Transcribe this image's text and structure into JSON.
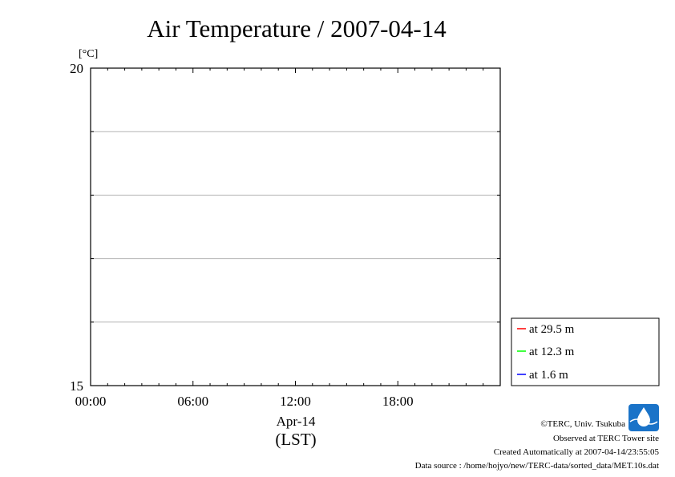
{
  "chart_data": {
    "type": "line",
    "title": "Air Temperature / 2007-04-14",
    "ylabel": "[°C]",
    "ylim": [
      15,
      20
    ],
    "yticks": [
      15,
      20
    ],
    "ygrid": [
      16,
      17,
      18,
      19
    ],
    "xlim_hours": [
      0,
      24
    ],
    "xticks": [
      {
        "hour": 0,
        "label": "00:00"
      },
      {
        "hour": 6,
        "label": "06:00"
      },
      {
        "hour": 12,
        "label": "12:00"
      },
      {
        "hour": 18,
        "label": "18:00"
      }
    ],
    "xlabel_date": "Apr-14",
    "xlabel": "(LST)",
    "grid": "horizontal",
    "legend_position": "right-bottom",
    "series": [
      {
        "name": "at 29.5 m",
        "color": "#ff0000",
        "values": []
      },
      {
        "name": "at 12.3 m",
        "color": "#00ff00",
        "values": []
      },
      {
        "name": "at 1.6 m",
        "color": "#0000ff",
        "values": []
      }
    ]
  },
  "footer": {
    "copyright": "©TERC, Univ. Tsukuba",
    "observed": "Observed at TERC Tower site",
    "created": "Created Automatically at 2007-04-14/23:55:05",
    "source": "Data source : /home/hojyo/new/TERC-data/sorted_data/MET.10s.dat",
    "logo_text": "TERC",
    "logo_color": "#1a73c8"
  }
}
